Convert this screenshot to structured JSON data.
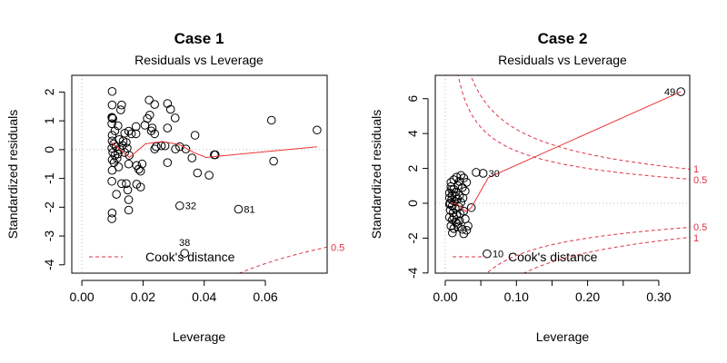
{
  "chart_data": [
    {
      "type": "scatter",
      "title": "Case 1",
      "subtitle": "Residuals vs Leverage",
      "xlabel": "Leverage",
      "ylabel": "Standardized residuals",
      "xlim": [
        -0.0033,
        0.0802
      ],
      "ylim": [
        -4.29,
        2.58
      ],
      "xticks": [
        0.0,
        0.02,
        0.04,
        0.06
      ],
      "xtick_labels": [
        "0.00",
        "0.02",
        "0.04",
        "0.06"
      ],
      "yticks": [
        -4,
        -3,
        -2,
        -1,
        0,
        1,
        2
      ],
      "ytick_labels": [
        "-4",
        "-3",
        "-2",
        "-1",
        "0",
        "1",
        "2"
      ],
      "minor_xticks": [],
      "grid": false,
      "legend": {
        "label": "Cook's distance",
        "placement": "bottom-left"
      },
      "cook_levels": [
        0.5
      ],
      "cook_labels": [
        "0.5"
      ],
      "colors": {
        "points": "#000000",
        "smooth": "#ee3333",
        "cook": "#dd3344",
        "reference": "#bbbbbb"
      },
      "points": [
        [
          0.0099,
          2.02
        ],
        [
          0.0099,
          1.55
        ],
        [
          0.013,
          1.55
        ],
        [
          0.0127,
          1.38
        ],
        [
          0.0099,
          1.1
        ],
        [
          0.0101,
          1.08
        ],
        [
          0.0098,
          1.12
        ],
        [
          0.0118,
          0.83
        ],
        [
          0.0098,
          0.9
        ],
        [
          0.0108,
          0.65
        ],
        [
          0.0099,
          0.5
        ],
        [
          0.014,
          0.57
        ],
        [
          0.0153,
          0.64
        ],
        [
          0.0162,
          0.55
        ],
        [
          0.0177,
          0.8
        ],
        [
          0.0177,
          0.55
        ],
        [
          0.022,
          1.72
        ],
        [
          0.0238,
          1.57
        ],
        [
          0.028,
          1.6
        ],
        [
          0.029,
          1.4
        ],
        [
          0.0305,
          1.1
        ],
        [
          0.0222,
          1.2
        ],
        [
          0.0214,
          1.08
        ],
        [
          0.0206,
          0.85
        ],
        [
          0.023,
          0.75
        ],
        [
          0.0227,
          0.65
        ],
        [
          0.0238,
          0.55
        ],
        [
          0.028,
          0.75
        ],
        [
          0.037,
          0.5
        ],
        [
          0.0238,
          0.02
        ],
        [
          0.0243,
          0.1
        ],
        [
          0.026,
          0.13
        ],
        [
          0.0272,
          0.13
        ],
        [
          0.0306,
          0.02
        ],
        [
          0.032,
          0.1
        ],
        [
          0.034,
          0.02
        ],
        [
          0.036,
          -0.29
        ],
        [
          0.028,
          -0.45
        ],
        [
          0.0378,
          -0.81
        ],
        [
          0.0416,
          -0.89
        ],
        [
          0.0433,
          -0.18
        ],
        [
          0.0436,
          -0.18
        ],
        [
          0.062,
          1.02
        ],
        [
          0.0627,
          -0.4
        ],
        [
          0.0769,
          0.68
        ],
        [
          0.0099,
          -2.2
        ],
        [
          0.0098,
          -2.4
        ],
        [
          0.0098,
          -1.1
        ],
        [
          0.0113,
          -1.55
        ],
        [
          0.0099,
          -0.72
        ],
        [
          0.012,
          -0.6
        ],
        [
          0.013,
          -1.18
        ],
        [
          0.0145,
          -1.18
        ],
        [
          0.015,
          -1.4
        ],
        [
          0.0153,
          -1.74
        ],
        [
          0.0153,
          -2.1
        ],
        [
          0.0153,
          -0.5
        ],
        [
          0.0179,
          -0.55
        ],
        [
          0.0186,
          -0.68
        ],
        [
          0.0192,
          -0.75
        ],
        [
          0.0197,
          -0.5
        ],
        [
          0.0179,
          -1.2
        ],
        [
          0.0192,
          -1.3
        ],
        [
          0.0099,
          0.3
        ],
        [
          0.0104,
          0.2
        ],
        [
          0.0112,
          0.1
        ],
        [
          0.0098,
          0.05
        ],
        [
          0.0101,
          -0.1
        ],
        [
          0.0108,
          -0.2
        ],
        [
          0.0115,
          -0.3
        ],
        [
          0.0125,
          0.0
        ],
        [
          0.0133,
          0.15
        ],
        [
          0.014,
          -0.1
        ],
        [
          0.0148,
          0.05
        ],
        [
          0.0155,
          -0.2
        ],
        [
          0.0122,
          0.35
        ],
        [
          0.0135,
          0.3
        ],
        [
          0.0099,
          -0.35
        ],
        [
          0.0105,
          -0.45
        ],
        [
          0.0118,
          -0.15
        ],
        [
          0.0145,
          0.25
        ]
      ],
      "labeled_points": [
        {
          "x": 0.032,
          "y": -1.95,
          "label": "32"
        },
        {
          "x": 0.0512,
          "y": -2.07,
          "label": "81"
        },
        {
          "x": 0.0336,
          "y": -3.6,
          "label": "38"
        }
      ],
      "smooth": [
        [
          0.0094,
          0.27
        ],
        [
          0.0156,
          -0.27
        ],
        [
          0.0208,
          0.2
        ],
        [
          0.0262,
          0.28
        ],
        [
          0.0317,
          0.18
        ],
        [
          0.0366,
          -0.1
        ],
        [
          0.0406,
          -0.27
        ],
        [
          0.0445,
          -0.23
        ],
        [
          0.0769,
          0.1
        ]
      ]
    },
    {
      "type": "scatter",
      "title": "Case 2",
      "subtitle": "Residuals vs Leverage",
      "xlabel": "Leverage",
      "ylabel": "Standardized residuals",
      "xlim": [
        -0.014,
        0.3435
      ],
      "ylim": [
        -4.01,
        7.34
      ],
      "xticks": [
        0.0,
        0.1,
        0.2,
        0.3
      ],
      "xtick_labels": [
        "0.00",
        "0.10",
        "0.20",
        "0.30"
      ],
      "yticks": [
        -4,
        -2,
        0,
        2,
        4,
        6
      ],
      "ytick_labels": [
        "-4",
        "-2",
        "0",
        "2",
        "4",
        "6"
      ],
      "minor_xticks": [
        0.05,
        0.15,
        0.25
      ],
      "grid": false,
      "legend": {
        "label": "Cook's distance",
        "placement": "bottom-left"
      },
      "cook_levels": [
        0.5,
        1
      ],
      "cook_labels": [
        "0.5",
        "1"
      ],
      "colors": {
        "points": "#000000",
        "smooth": "#ee3333",
        "cook": "#dd3344",
        "reference": "#bbbbbb"
      },
      "points": [
        [
          0.0434,
          1.77
        ],
        [
          0.0366,
          -0.25
        ],
        [
          0.008,
          1.2
        ],
        [
          0.012,
          1.35
        ],
        [
          0.016,
          1.5
        ],
        [
          0.022,
          1.6
        ],
        [
          0.026,
          1.45
        ],
        [
          0.02,
          1.25
        ],
        [
          0.03,
          1.2
        ],
        [
          0.008,
          0.95
        ],
        [
          0.012,
          0.8
        ],
        [
          0.018,
          1.0
        ],
        [
          0.024,
          0.9
        ],
        [
          0.028,
          0.7
        ],
        [
          0.006,
          0.6
        ],
        [
          0.01,
          0.5
        ],
        [
          0.015,
          0.65
        ],
        [
          0.02,
          0.45
        ],
        [
          0.025,
          0.3
        ],
        [
          0.006,
          0.3
        ],
        [
          0.009,
          0.2
        ],
        [
          0.013,
          0.1
        ],
        [
          0.017,
          0.25
        ],
        [
          0.022,
          0.05
        ],
        [
          0.006,
          -0.05
        ],
        [
          0.01,
          -0.15
        ],
        [
          0.014,
          -0.3
        ],
        [
          0.019,
          -0.2
        ],
        [
          0.007,
          -0.4
        ],
        [
          0.011,
          -0.55
        ],
        [
          0.016,
          -0.7
        ],
        [
          0.021,
          -0.6
        ],
        [
          0.026,
          -0.45
        ],
        [
          0.006,
          -0.8
        ],
        [
          0.01,
          -0.95
        ],
        [
          0.015,
          -1.1
        ],
        [
          0.02,
          -1.0
        ],
        [
          0.028,
          -0.9
        ],
        [
          0.032,
          -1.3
        ],
        [
          0.008,
          -1.3
        ],
        [
          0.012,
          -1.45
        ],
        [
          0.018,
          -1.35
        ],
        [
          0.024,
          -1.5
        ],
        [
          0.03,
          -1.55
        ],
        [
          0.01,
          -1.7
        ],
        [
          0.026,
          -1.75
        ],
        [
          0.007,
          0.0
        ],
        [
          0.009,
          0.8
        ],
        [
          0.014,
          0.4
        ],
        [
          0.012,
          -0.8
        ],
        [
          0.017,
          -1.2
        ]
      ],
      "labeled_points": [
        {
          "x": 0.331,
          "y": 6.4,
          "label": "49"
        },
        {
          "x": 0.0532,
          "y": 1.72,
          "label": "30"
        },
        {
          "x": 0.0587,
          "y": -2.9,
          "label": "10"
        }
      ],
      "smooth": [
        [
          0.0077,
          0.02
        ],
        [
          0.017,
          -0.05
        ],
        [
          0.029,
          -0.48
        ],
        [
          0.0366,
          -0.25
        ],
        [
          0.0604,
          1.47
        ],
        [
          0.331,
          6.4
        ]
      ]
    }
  ]
}
